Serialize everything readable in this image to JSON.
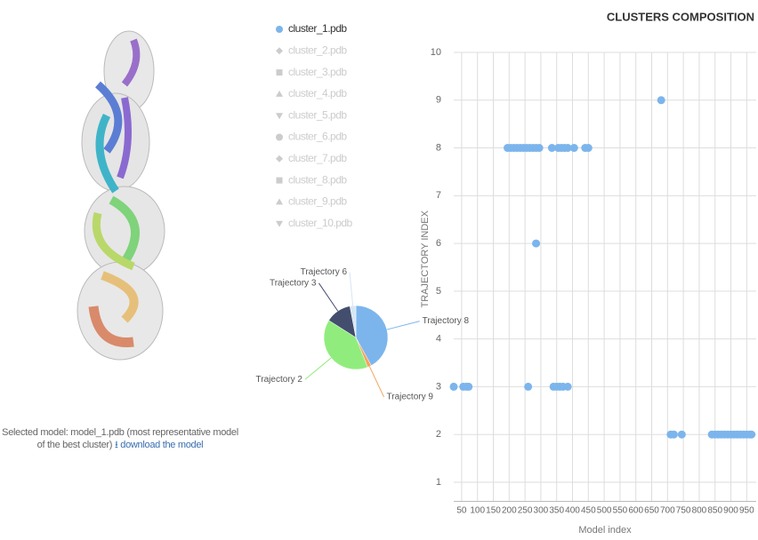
{
  "caption": "Selected model: model_1.pdb (most representative model of the best cluster)",
  "download_link": "download the model",
  "chart_data": [
    {
      "type": "pie",
      "labels": [
        "Trajectory 8",
        "Trajectory 9",
        "Trajectory 2",
        "Trajectory 3",
        "Trajectory 6"
      ],
      "values": [
        42,
        2,
        40,
        13,
        3
      ],
      "colors": [
        "#7cb5ec",
        "#f7a35c",
        "#90ed7d",
        "#434d6e",
        "#d6e6f5"
      ]
    },
    {
      "type": "scatter",
      "title": "CLUSTERS COMPOSITION",
      "xlabel": "Model index",
      "ylabel": "TRAJECTORY INDEX",
      "xlim": [
        25,
        980
      ],
      "ylim": [
        0.6,
        10
      ],
      "xticks": [
        50,
        100,
        150,
        200,
        250,
        300,
        350,
        400,
        450,
        500,
        550,
        600,
        650,
        700,
        750,
        800,
        850,
        900,
        950
      ],
      "yticks": [
        1,
        2,
        3,
        4,
        5,
        6,
        7,
        8,
        9,
        10
      ],
      "grid": true,
      "series": [
        {
          "name": "cluster_1.pdb",
          "color": "#7cb5ec",
          "visible": true,
          "x": [
            195,
            205,
            215,
            225,
            235,
            245,
            255,
            265,
            275,
            285,
            295,
            335,
            355,
            365,
            375,
            385,
            405,
            440,
            450,
            680,
            285,
            25,
            55,
            65,
            72,
            260,
            340,
            350,
            360,
            370,
            385,
            710,
            720,
            745,
            840,
            850,
            860,
            870,
            880,
            890,
            900,
            910,
            920,
            930,
            940,
            950,
            960,
            965
          ],
          "y": [
            8,
            8,
            8,
            8,
            8,
            8,
            8,
            8,
            8,
            8,
            8,
            8,
            8,
            8,
            8,
            8,
            8,
            8,
            8,
            9,
            6,
            3,
            3,
            3,
            3,
            3,
            3,
            3,
            3,
            3,
            3,
            2,
            2,
            2,
            2,
            2,
            2,
            2,
            2,
            2,
            2,
            2,
            2,
            2,
            2,
            2,
            2,
            2
          ]
        },
        {
          "name": "cluster_2.pdb",
          "visible": false
        },
        {
          "name": "cluster_3.pdb",
          "visible": false
        },
        {
          "name": "cluster_4.pdb",
          "visible": false
        },
        {
          "name": "cluster_5.pdb",
          "visible": false
        },
        {
          "name": "cluster_6.pdb",
          "visible": false
        },
        {
          "name": "cluster_7.pdb",
          "visible": false
        },
        {
          "name": "cluster_8.pdb",
          "visible": false
        },
        {
          "name": "cluster_9.pdb",
          "visible": false
        },
        {
          "name": "cluster_10.pdb",
          "visible": false
        }
      ]
    }
  ]
}
